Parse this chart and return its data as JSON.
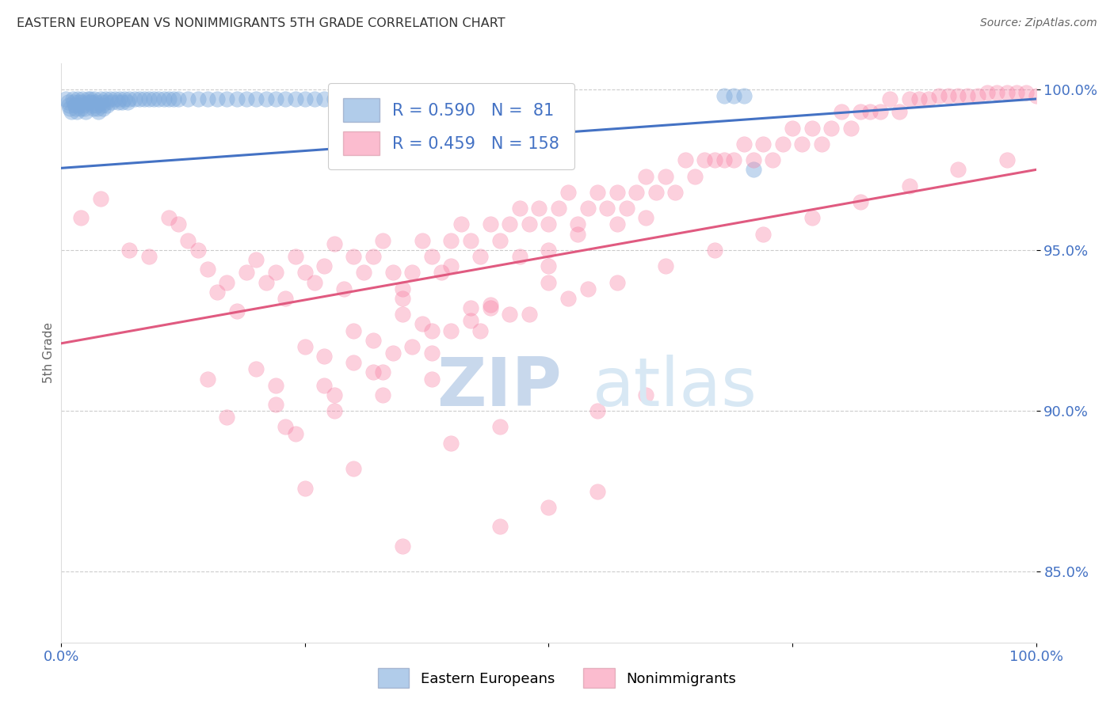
{
  "title": "EASTERN EUROPEAN VS NONIMMIGRANTS 5TH GRADE CORRELATION CHART",
  "source": "Source: ZipAtlas.com",
  "ylabel": "5th Grade",
  "blue_R": 0.59,
  "blue_N": 81,
  "pink_R": 0.459,
  "pink_N": 158,
  "xlim": [
    0.0,
    1.0
  ],
  "ylim": [
    0.828,
    1.008
  ],
  "blue_color": "#7eaadc",
  "pink_color": "#f87aa0",
  "blue_line_color": "#4472c4",
  "pink_line_color": "#e05a80",
  "grid_color": "#cccccc",
  "watermark_zip_color": "#c8d8ec",
  "watermark_atlas_color": "#d8e8f4",
  "title_color": "#333333",
  "axis_label_color": "#4472c4",
  "blue_scatter_x": [
    0.005,
    0.007,
    0.008,
    0.009,
    0.01,
    0.012,
    0.013,
    0.014,
    0.015,
    0.016,
    0.017,
    0.018,
    0.019,
    0.02,
    0.021,
    0.022,
    0.023,
    0.024,
    0.025,
    0.027,
    0.028,
    0.03,
    0.031,
    0.032,
    0.033,
    0.034,
    0.035,
    0.036,
    0.037,
    0.038,
    0.04,
    0.041,
    0.042,
    0.043,
    0.045,
    0.046,
    0.047,
    0.05,
    0.052,
    0.055,
    0.058,
    0.06,
    0.062,
    0.065,
    0.068,
    0.07,
    0.075,
    0.08,
    0.085,
    0.09,
    0.095,
    0.1,
    0.105,
    0.11,
    0.115,
    0.12,
    0.13,
    0.14,
    0.15,
    0.16,
    0.17,
    0.18,
    0.19,
    0.2,
    0.21,
    0.22,
    0.23,
    0.24,
    0.25,
    0.26,
    0.27,
    0.28,
    0.3,
    0.32,
    0.34,
    0.37,
    0.4,
    0.68,
    0.69,
    0.7,
    0.71
  ],
  "blue_scatter_y": [
    0.997,
    0.996,
    0.995,
    0.994,
    0.993,
    0.997,
    0.996,
    0.995,
    0.994,
    0.993,
    0.997,
    0.996,
    0.995,
    0.994,
    0.996,
    0.997,
    0.995,
    0.994,
    0.993,
    0.997,
    0.996,
    0.997,
    0.996,
    0.995,
    0.994,
    0.997,
    0.996,
    0.995,
    0.994,
    0.993,
    0.997,
    0.996,
    0.995,
    0.994,
    0.997,
    0.996,
    0.995,
    0.997,
    0.996,
    0.997,
    0.996,
    0.997,
    0.996,
    0.997,
    0.996,
    0.997,
    0.997,
    0.997,
    0.997,
    0.997,
    0.997,
    0.997,
    0.997,
    0.997,
    0.997,
    0.997,
    0.997,
    0.997,
    0.997,
    0.997,
    0.997,
    0.997,
    0.997,
    0.997,
    0.997,
    0.997,
    0.997,
    0.997,
    0.997,
    0.997,
    0.997,
    0.997,
    0.997,
    0.998,
    0.998,
    0.998,
    0.998,
    0.998,
    0.998,
    0.998,
    0.975
  ],
  "pink_scatter_x": [
    0.02,
    0.04,
    0.07,
    0.09,
    0.11,
    0.12,
    0.13,
    0.14,
    0.15,
    0.16,
    0.17,
    0.18,
    0.19,
    0.2,
    0.21,
    0.22,
    0.23,
    0.24,
    0.25,
    0.26,
    0.27,
    0.28,
    0.29,
    0.3,
    0.31,
    0.32,
    0.33,
    0.34,
    0.35,
    0.36,
    0.37,
    0.38,
    0.39,
    0.4,
    0.41,
    0.42,
    0.43,
    0.44,
    0.45,
    0.46,
    0.47,
    0.48,
    0.49,
    0.5,
    0.51,
    0.52,
    0.53,
    0.54,
    0.55,
    0.56,
    0.57,
    0.58,
    0.59,
    0.6,
    0.61,
    0.62,
    0.63,
    0.64,
    0.65,
    0.66,
    0.67,
    0.68,
    0.69,
    0.7,
    0.71,
    0.72,
    0.73,
    0.74,
    0.75,
    0.76,
    0.77,
    0.78,
    0.79,
    0.8,
    0.81,
    0.82,
    0.83,
    0.84,
    0.85,
    0.86,
    0.87,
    0.88,
    0.89,
    0.9,
    0.91,
    0.92,
    0.93,
    0.94,
    0.95,
    0.96,
    0.97,
    0.98,
    0.99,
    1.0,
    0.15,
    0.2,
    0.25,
    0.3,
    0.35,
    0.22,
    0.27,
    0.32,
    0.37,
    0.42,
    0.17,
    0.22,
    0.27,
    0.32,
    0.23,
    0.28,
    0.33,
    0.38,
    0.24,
    0.44,
    0.54,
    0.34,
    0.4,
    0.46,
    0.36,
    0.42,
    0.5,
    0.3,
    0.38,
    0.44,
    0.28,
    0.33,
    0.38,
    0.43,
    0.48,
    0.52,
    0.57,
    0.62,
    0.67,
    0.72,
    0.77,
    0.82,
    0.87,
    0.92,
    0.97,
    0.5,
    0.4,
    0.6,
    0.47,
    0.53,
    0.57,
    0.5,
    0.35,
    0.25,
    0.3,
    0.4,
    0.45,
    0.55,
    0.6,
    0.35,
    0.45,
    0.5,
    0.55
  ],
  "pink_scatter_y": [
    0.96,
    0.966,
    0.95,
    0.948,
    0.96,
    0.958,
    0.953,
    0.95,
    0.944,
    0.937,
    0.94,
    0.931,
    0.943,
    0.947,
    0.94,
    0.943,
    0.935,
    0.948,
    0.943,
    0.94,
    0.945,
    0.952,
    0.938,
    0.948,
    0.943,
    0.948,
    0.953,
    0.943,
    0.938,
    0.943,
    0.953,
    0.948,
    0.943,
    0.953,
    0.958,
    0.953,
    0.948,
    0.958,
    0.953,
    0.958,
    0.963,
    0.958,
    0.963,
    0.958,
    0.963,
    0.968,
    0.958,
    0.963,
    0.968,
    0.963,
    0.968,
    0.963,
    0.968,
    0.973,
    0.968,
    0.973,
    0.968,
    0.978,
    0.973,
    0.978,
    0.978,
    0.978,
    0.978,
    0.983,
    0.978,
    0.983,
    0.978,
    0.983,
    0.988,
    0.983,
    0.988,
    0.983,
    0.988,
    0.993,
    0.988,
    0.993,
    0.993,
    0.993,
    0.997,
    0.993,
    0.997,
    0.997,
    0.997,
    0.998,
    0.998,
    0.998,
    0.998,
    0.998,
    0.999,
    0.999,
    0.999,
    0.999,
    0.999,
    0.998,
    0.91,
    0.913,
    0.92,
    0.925,
    0.93,
    0.908,
    0.917,
    0.922,
    0.927,
    0.932,
    0.898,
    0.902,
    0.908,
    0.912,
    0.895,
    0.9,
    0.905,
    0.91,
    0.893,
    0.933,
    0.938,
    0.918,
    0.925,
    0.93,
    0.92,
    0.928,
    0.94,
    0.915,
    0.925,
    0.932,
    0.905,
    0.912,
    0.918,
    0.925,
    0.93,
    0.935,
    0.94,
    0.945,
    0.95,
    0.955,
    0.96,
    0.965,
    0.97,
    0.975,
    0.978,
    0.95,
    0.945,
    0.96,
    0.948,
    0.955,
    0.958,
    0.945,
    0.935,
    0.876,
    0.882,
    0.89,
    0.895,
    0.9,
    0.905,
    0.858,
    0.864,
    0.87,
    0.875
  ],
  "blue_trendline_x": [
    0.0,
    1.0
  ],
  "blue_trendline_y": [
    0.9755,
    0.997
  ],
  "pink_trendline_x": [
    0.0,
    1.0
  ],
  "pink_trendline_y": [
    0.921,
    0.975
  ],
  "bg_color": "#ffffff"
}
